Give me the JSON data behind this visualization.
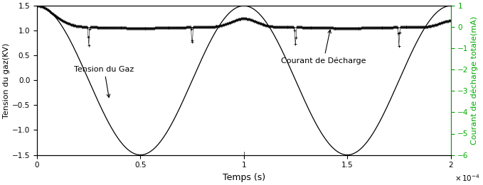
{
  "xlabel": "Temps (s)",
  "ylabel_left": "Tension du gaz(KV)",
  "ylabel_right": "Courant de décharge totale(mA)",
  "xlim": [
    0,
    0.0002
  ],
  "ylim_left": [
    -1.5,
    1.5
  ],
  "ylim_right": [
    -6,
    1
  ],
  "annotation1_text": "Tension du Gaz",
  "annotation2_text": "Courant de Décharge",
  "right_axis_color": "#00aa00",
  "period": 0.0001,
  "amplitude_vgaz": 1.5
}
